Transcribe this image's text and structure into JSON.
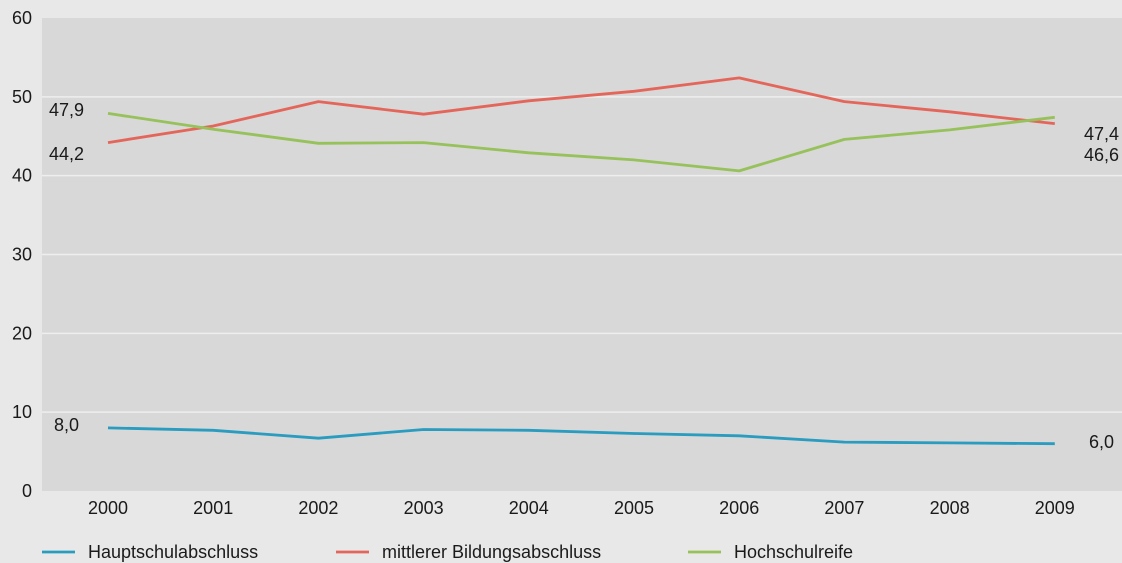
{
  "chart_data": {
    "type": "line",
    "title": "",
    "xlabel": "",
    "ylabel": "",
    "ylim": [
      0,
      60
    ],
    "yticks": [
      "0",
      "10",
      "20",
      "30",
      "40",
      "50",
      "60"
    ],
    "categories": [
      "2000",
      "2001",
      "2002",
      "2003",
      "2004",
      "2005",
      "2006",
      "2007",
      "2008",
      "2009"
    ],
    "grid": true,
    "legend_position": "bottom",
    "series": [
      {
        "name": "Hauptschulabschluss",
        "color": "#2a9cbf",
        "values": [
          8.0,
          7.7,
          6.7,
          7.8,
          7.7,
          7.3,
          7.0,
          6.2,
          6.1,
          6.0
        ],
        "first_label": "8,0",
        "last_label": "6,0"
      },
      {
        "name": "mittlerer Bildungsabschluss",
        "color": "#e4665a",
        "values": [
          44.2,
          46.3,
          49.4,
          47.8,
          49.5,
          50.7,
          52.4,
          49.4,
          48.1,
          46.6
        ],
        "first_label": "44,2",
        "last_label": "46,6"
      },
      {
        "name": "Hochschulreife",
        "color": "#97c15a",
        "values": [
          47.9,
          45.9,
          44.1,
          44.2,
          42.9,
          42.0,
          40.6,
          44.6,
          45.8,
          47.4
        ],
        "first_label": "47,9",
        "last_label": "47,4"
      }
    ]
  }
}
